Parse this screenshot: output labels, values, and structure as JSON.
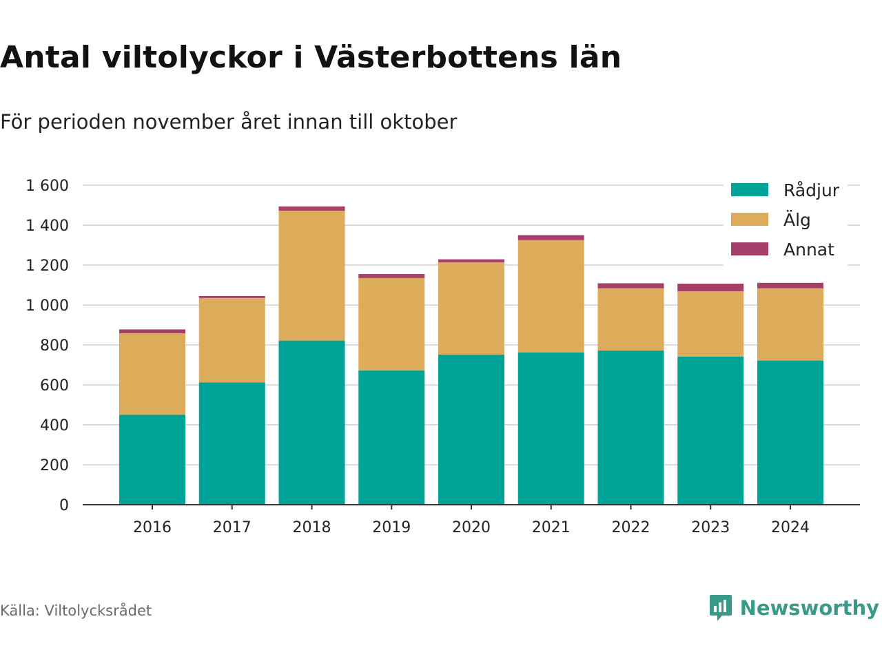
{
  "title": "Antal viltolyckor i Västerbottens län",
  "subtitle": "För perioden november året innan till oktober",
  "source": "Källa: Viltolycksrådet",
  "brand": {
    "name": "Newsworthy",
    "icon": "newsworthy-logo-icon",
    "color": "#3a9a8a"
  },
  "chart_data": {
    "type": "bar",
    "stacked": true,
    "categories": [
      "2016",
      "2017",
      "2018",
      "2019",
      "2020",
      "2021",
      "2022",
      "2023",
      "2024"
    ],
    "series": [
      {
        "name": "Rådjur",
        "color": "#00a398",
        "values": [
          450,
          612,
          822,
          672,
          752,
          762,
          772,
          742,
          722
        ]
      },
      {
        "name": "Älg",
        "color": "#dcac5a",
        "values": [
          408,
          423,
          650,
          463,
          462,
          563,
          312,
          327,
          362
        ]
      },
      {
        "name": "Annat",
        "color": "#a63f6a",
        "values": [
          20,
          10,
          22,
          20,
          15,
          25,
          25,
          38,
          27
        ]
      }
    ],
    "ylim": [
      0,
      1600
    ],
    "yticks": [
      0,
      200,
      400,
      600,
      800,
      1000,
      1200,
      1400,
      1600
    ],
    "ytick_labels": [
      "0",
      "200",
      "400",
      "600",
      "800",
      "1 000",
      "1 200",
      "1 400",
      "1 600"
    ],
    "grid": true,
    "legend_position": "top-right"
  }
}
